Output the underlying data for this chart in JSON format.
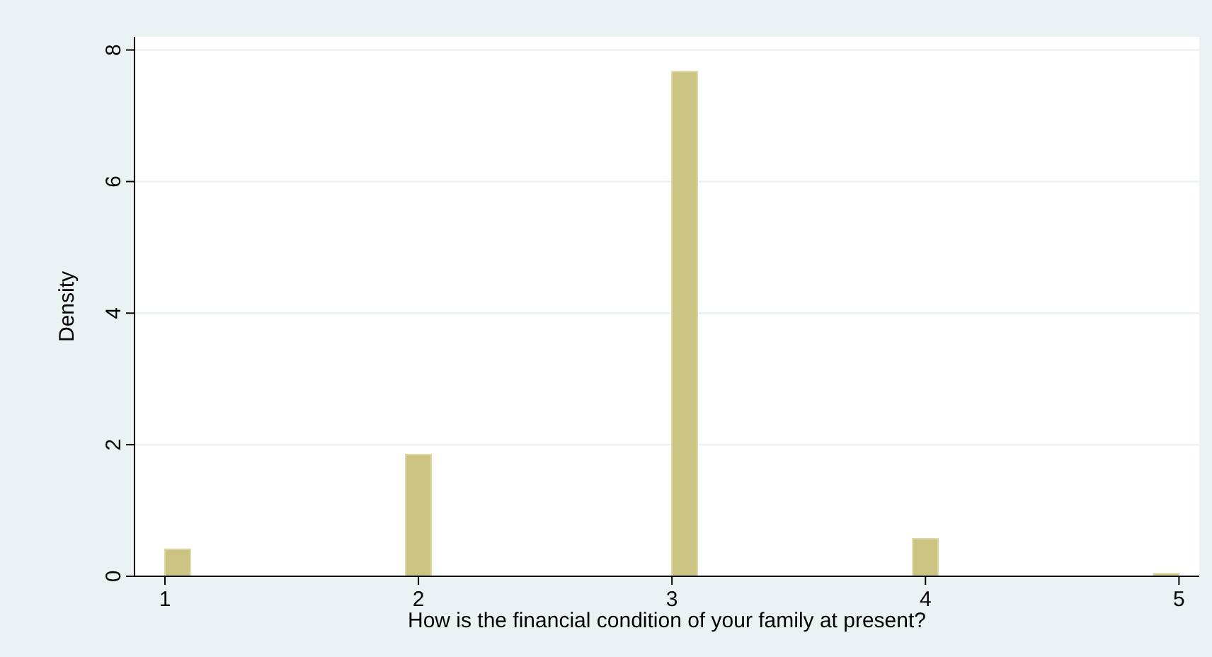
{
  "chart_data": {
    "type": "histogram",
    "xlabel": "How is the financial condition of your family at present?",
    "ylabel": "Density",
    "bins": [
      1,
      1.1,
      1.95,
      2.05,
      3,
      3.1,
      3.95,
      4.05,
      4.9,
      5
    ],
    "values": [
      0.41,
      0,
      1.85,
      0,
      7.67,
      0,
      0.57,
      0,
      0.04
    ],
    "color": "#cbc382",
    "xlim": [
      0.88,
      5.08
    ],
    "xticks": [
      1,
      2,
      3,
      4,
      5
    ],
    "ylim": [
      0,
      8.2
    ],
    "yticks": [
      0,
      2,
      4,
      6,
      8
    ],
    "grid": "y"
  }
}
